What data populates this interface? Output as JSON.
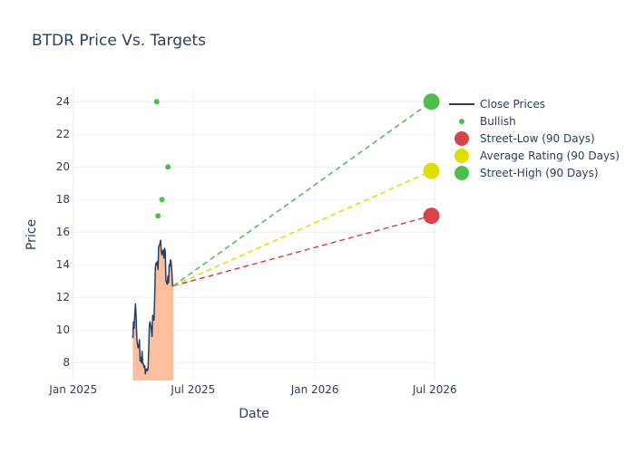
{
  "chart_data": {
    "type": "line",
    "title": "BTDR Price Vs. Targets",
    "xlabel": "Date",
    "ylabel": "Price",
    "x_range": [
      "2024-12-31",
      "2026-07-02"
    ],
    "ylim": [
      6.9,
      24.9
    ],
    "x_ticks": [
      {
        "date": "2025-01-01",
        "label": "Jan 2025"
      },
      {
        "date": "2025-07-01",
        "label": "Jul 2025"
      },
      {
        "date": "2026-01-01",
        "label": "Jan 2026"
      },
      {
        "date": "2026-07-01",
        "label": "Jul 2026"
      }
    ],
    "y_ticks": [
      8,
      10,
      12,
      14,
      16,
      18,
      20,
      22,
      24
    ],
    "grid": true,
    "legend_position": "top-right",
    "series": [
      {
        "name": "Close Prices",
        "kind": "line-area",
        "line_color": "#2a3f5f",
        "fill_color": "#fbbfa0",
        "points": [
          [
            "2025-04-01",
            9.5
          ],
          [
            "2025-04-02",
            10.5
          ],
          [
            "2025-04-03",
            10.1
          ],
          [
            "2025-04-04",
            11.0
          ],
          [
            "2025-04-05",
            11.6
          ],
          [
            "2025-04-06",
            10.8
          ],
          [
            "2025-04-07",
            9.5
          ],
          [
            "2025-04-08",
            9.1
          ],
          [
            "2025-04-09",
            8.9
          ],
          [
            "2025-04-10",
            9.0
          ],
          [
            "2025-04-11",
            9.4
          ],
          [
            "2025-04-12",
            8.1
          ],
          [
            "2025-04-13",
            8.3
          ],
          [
            "2025-04-14",
            8.0
          ],
          [
            "2025-04-15",
            8.7
          ],
          [
            "2025-04-16",
            7.9
          ],
          [
            "2025-04-17",
            7.9
          ],
          [
            "2025-04-18",
            7.7
          ],
          [
            "2025-04-19",
            7.8
          ],
          [
            "2025-04-20",
            7.3
          ],
          [
            "2025-04-21",
            7.6
          ],
          [
            "2025-04-22",
            7.6
          ],
          [
            "2025-04-23",
            7.5
          ],
          [
            "2025-04-24",
            7.6
          ],
          [
            "2025-04-25",
            8.9
          ],
          [
            "2025-04-26",
            10.3
          ],
          [
            "2025-04-27",
            10.5
          ],
          [
            "2025-04-28",
            10.3
          ],
          [
            "2025-04-29",
            10.0
          ],
          [
            "2025-04-30",
            9.6
          ],
          [
            "2025-05-01",
            10.9
          ],
          [
            "2025-05-02",
            10.7
          ],
          [
            "2025-05-03",
            10.6
          ],
          [
            "2025-05-04",
            12.0
          ],
          [
            "2025-05-05",
            13.8
          ],
          [
            "2025-05-06",
            14.1
          ],
          [
            "2025-05-07",
            14.0
          ],
          [
            "2025-05-08",
            14.2
          ],
          [
            "2025-05-09",
            13.7
          ],
          [
            "2025-05-10",
            15.1
          ],
          [
            "2025-05-11",
            15.2
          ],
          [
            "2025-05-12",
            15.3
          ],
          [
            "2025-05-13",
            15.5
          ],
          [
            "2025-05-14",
            14.8
          ],
          [
            "2025-05-15",
            14.6
          ],
          [
            "2025-05-16",
            14.8
          ],
          [
            "2025-05-17",
            14.9
          ],
          [
            "2025-05-18",
            14.4
          ],
          [
            "2025-05-19",
            15.0
          ],
          [
            "2025-05-20",
            14.8
          ],
          [
            "2025-05-21",
            13.0
          ],
          [
            "2025-05-22",
            12.9
          ],
          [
            "2025-05-23",
            12.8
          ],
          [
            "2025-05-24",
            13.3
          ],
          [
            "2025-05-25",
            12.9
          ],
          [
            "2025-05-26",
            14.0
          ],
          [
            "2025-05-27",
            13.9
          ],
          [
            "2025-05-28",
            14.3
          ],
          [
            "2025-05-29",
            14.1
          ],
          [
            "2025-05-30",
            13.5
          ],
          [
            "2025-05-31",
            12.7
          ],
          [
            "2025-06-01",
            12.7
          ]
        ]
      },
      {
        "name": "Bullish",
        "kind": "markers",
        "color": "#4dbd4d",
        "points": [
          [
            "2025-05-07",
            24
          ],
          [
            "2025-05-09",
            17
          ],
          [
            "2025-05-15",
            18
          ],
          [
            "2025-05-24",
            20
          ]
        ]
      },
      {
        "name": "Street-Low (90 Days)",
        "kind": "target",
        "color": "#d84447",
        "from": [
          "2025-06-01",
          12.7
        ],
        "to": [
          "2026-06-26",
          17.0
        ]
      },
      {
        "name": "Average Rating (90 Days)",
        "kind": "target",
        "color": "#dede00",
        "from": [
          "2025-06-01",
          12.7
        ],
        "to": [
          "2026-06-26",
          19.75
        ]
      },
      {
        "name": "Street-High (90 Days)",
        "kind": "target",
        "color": "#4dbd4d",
        "from": [
          "2025-06-01",
          12.7
        ],
        "to": [
          "2026-06-26",
          24.0
        ]
      }
    ]
  }
}
